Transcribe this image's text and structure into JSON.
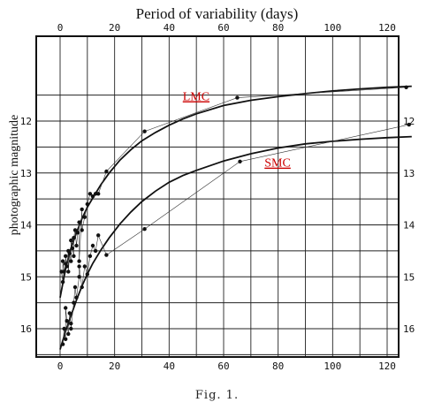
{
  "chart_data": {
    "type": "scatter",
    "title": "Period of variability (days)",
    "ylabel": "photographic magnitude",
    "caption": "Fig. 1.",
    "xlim": [
      0,
      130
    ],
    "ylim": [
      16.65,
      11.2
    ],
    "y_inverted": true,
    "grid": true,
    "x_ticks": [
      0,
      20,
      40,
      60,
      80,
      100,
      120
    ],
    "x_tick_labels": [
      "0",
      "20",
      "40",
      "60",
      "80",
      "100",
      "120"
    ],
    "y_ticks": [
      12,
      13,
      14,
      15,
      16
    ],
    "y_tick_labels": [
      "12",
      "13",
      "14",
      "15",
      "16"
    ],
    "series": [
      {
        "name": "LMC",
        "label_color": "#cc0000",
        "label_at": [
          45,
          11.6
        ],
        "points": [
          [
            0.5,
            14.9
          ],
          [
            1,
            15.1
          ],
          [
            1,
            14.7
          ],
          [
            1.5,
            14.9
          ],
          [
            2,
            14.75
          ],
          [
            2,
            14.6
          ],
          [
            2.5,
            14.8
          ],
          [
            3,
            14.5
          ],
          [
            3,
            14.9
          ],
          [
            3.5,
            14.55
          ],
          [
            4,
            14.7
          ],
          [
            4,
            14.3
          ],
          [
            4.5,
            14.45
          ],
          [
            5,
            14.6
          ],
          [
            5,
            14.25
          ],
          [
            5.5,
            14.1
          ],
          [
            6,
            14.4
          ],
          [
            6.5,
            14.15
          ],
          [
            7,
            13.95
          ],
          [
            7,
            14.7
          ],
          [
            8,
            13.7
          ],
          [
            8,
            14.1
          ],
          [
            9,
            13.85
          ],
          [
            10,
            13.6
          ],
          [
            11,
            13.4
          ],
          [
            12,
            13.45
          ],
          [
            13,
            13.4
          ],
          [
            14,
            13.4
          ],
          [
            17,
            12.97
          ],
          [
            31,
            12.2
          ],
          [
            65,
            11.55
          ],
          [
            127,
            11.35
          ]
        ],
        "fit": [
          [
            0,
            15.4
          ],
          [
            2,
            14.85
          ],
          [
            4,
            14.45
          ],
          [
            6,
            14.15
          ],
          [
            8,
            13.88
          ],
          [
            10,
            13.66
          ],
          [
            12,
            13.48
          ],
          [
            15,
            13.22
          ],
          [
            18,
            13.0
          ],
          [
            22,
            12.75
          ],
          [
            26,
            12.55
          ],
          [
            30,
            12.38
          ],
          [
            35,
            12.22
          ],
          [
            40,
            12.08
          ],
          [
            45,
            11.96
          ],
          [
            50,
            11.86
          ],
          [
            60,
            11.7
          ],
          [
            70,
            11.6
          ],
          [
            80,
            11.53
          ],
          [
            90,
            11.47
          ],
          [
            100,
            11.42
          ],
          [
            110,
            11.38
          ],
          [
            120,
            11.35
          ],
          [
            129,
            11.33
          ]
        ]
      },
      {
        "name": "SMC",
        "label_color": "#cc0000",
        "label_at": [
          75,
          12.88
        ],
        "points": [
          [
            1,
            16.3
          ],
          [
            1.5,
            16.0
          ],
          [
            2,
            16.2
          ],
          [
            2,
            15.6
          ],
          [
            2.5,
            15.85
          ],
          [
            3,
            16.1
          ],
          [
            3.5,
            15.7
          ],
          [
            4,
            15.9
          ],
          [
            4,
            16.0
          ],
          [
            5,
            15.5
          ],
          [
            5.5,
            15.2
          ],
          [
            6,
            15.4
          ],
          [
            7,
            15.0
          ],
          [
            7,
            14.8
          ],
          [
            8,
            15.2
          ],
          [
            9,
            14.8
          ],
          [
            10,
            14.95
          ],
          [
            11,
            14.6
          ],
          [
            12,
            14.4
          ],
          [
            13,
            14.5
          ],
          [
            14,
            14.2
          ],
          [
            17,
            14.58
          ],
          [
            31,
            14.08
          ],
          [
            66,
            12.78
          ],
          [
            128,
            12.07
          ]
        ],
        "fit": [
          [
            0,
            16.4
          ],
          [
            2,
            16.05
          ],
          [
            4,
            15.75
          ],
          [
            6,
            15.45
          ],
          [
            8,
            15.18
          ],
          [
            10,
            14.95
          ],
          [
            12,
            14.74
          ],
          [
            15,
            14.48
          ],
          [
            18,
            14.25
          ],
          [
            22,
            13.98
          ],
          [
            26,
            13.75
          ],
          [
            30,
            13.55
          ],
          [
            35,
            13.35
          ],
          [
            40,
            13.18
          ],
          [
            45,
            13.05
          ],
          [
            50,
            12.95
          ],
          [
            60,
            12.77
          ],
          [
            70,
            12.63
          ],
          [
            80,
            12.52
          ],
          [
            90,
            12.44
          ],
          [
            100,
            12.39
          ],
          [
            110,
            12.35
          ],
          [
            120,
            12.32
          ],
          [
            129,
            12.3
          ]
        ]
      }
    ]
  }
}
